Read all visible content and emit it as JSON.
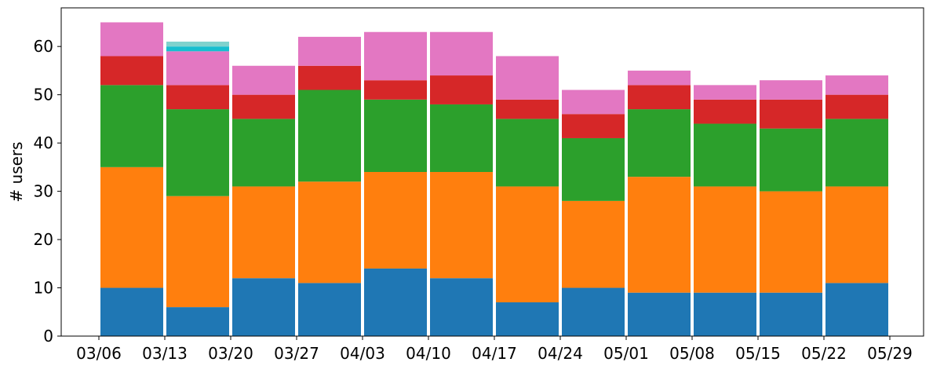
{
  "chart_data": {
    "type": "bar",
    "stacked": true,
    "ylabel": "# users",
    "xlabel": "",
    "title": "",
    "ylim": [
      0,
      68
    ],
    "yticks": [
      0,
      10,
      20,
      30,
      40,
      50,
      60
    ],
    "grid": false,
    "x_tick_labels": [
      "03/06",
      "03/13",
      "03/20",
      "03/27",
      "04/03",
      "04/10",
      "04/17",
      "04/24",
      "05/01",
      "05/08",
      "05/15",
      "05/22",
      "05/29"
    ],
    "bars": [
      "03/06",
      "03/13",
      "03/20",
      "03/27",
      "04/03",
      "04/10",
      "04/17",
      "04/24",
      "05/01",
      "05/08",
      "05/15",
      "05/22"
    ],
    "series": [
      {
        "color": "#1f77b4",
        "values": [
          10,
          6,
          12,
          11,
          14,
          12,
          7,
          10,
          9,
          9,
          9,
          11
        ]
      },
      {
        "color": "#ff7f0e",
        "values": [
          25,
          23,
          19,
          21,
          20,
          22,
          24,
          18,
          24,
          22,
          21,
          20
        ]
      },
      {
        "color": "#2ca02c",
        "values": [
          17,
          18,
          14,
          19,
          15,
          14,
          14,
          13,
          14,
          13,
          13,
          14
        ]
      },
      {
        "color": "#d62728",
        "values": [
          6,
          5,
          5,
          5,
          4,
          6,
          4,
          5,
          5,
          5,
          6,
          5
        ]
      },
      {
        "color": "#e377c2",
        "values": [
          7,
          7,
          6,
          6,
          10,
          9,
          9,
          5,
          3,
          3,
          4,
          4
        ]
      },
      {
        "color": "#17becf",
        "values": [
          0,
          1,
          0,
          0,
          0,
          0,
          0,
          0,
          0,
          0,
          0,
          0
        ]
      },
      {
        "color": "#7fd2cd",
        "values": [
          0,
          1,
          0,
          0,
          0,
          0,
          0,
          0,
          0,
          0,
          0,
          0
        ]
      }
    ]
  }
}
